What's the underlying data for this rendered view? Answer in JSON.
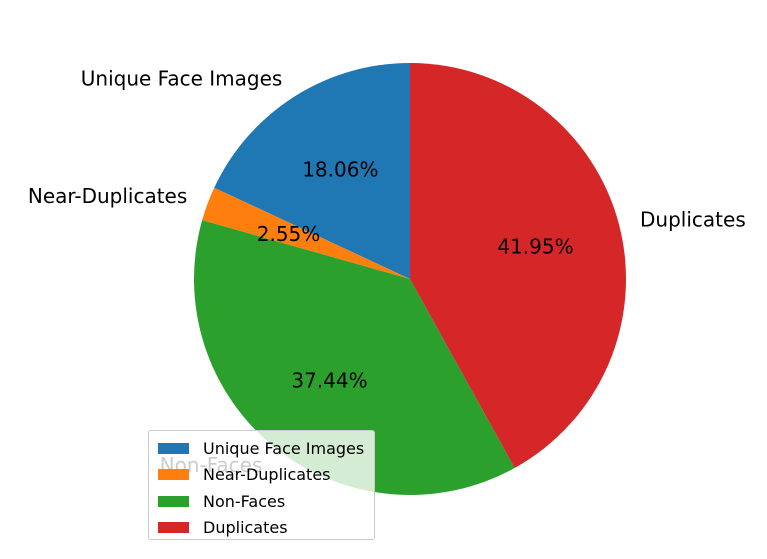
{
  "chart_data": {
    "type": "pie",
    "categories": [
      "Unique Face Images",
      "Near-Duplicates",
      "Non-Faces",
      "Duplicates"
    ],
    "values": [
      18.06,
      2.55,
      37.44,
      41.95
    ],
    "percent_labels": [
      "18.06%",
      "2.55%",
      "37.44%",
      "41.95%"
    ],
    "colors": [
      "#1f77b4",
      "#ff7f0e",
      "#2ca02c",
      "#d62728"
    ],
    "start_angle": 90,
    "direction": "counterclockwise",
    "legend": {
      "placement": "lower-left",
      "entries": [
        "Unique Face Images",
        "Near-Duplicates",
        "Non-Faces",
        "Duplicates"
      ]
    }
  }
}
